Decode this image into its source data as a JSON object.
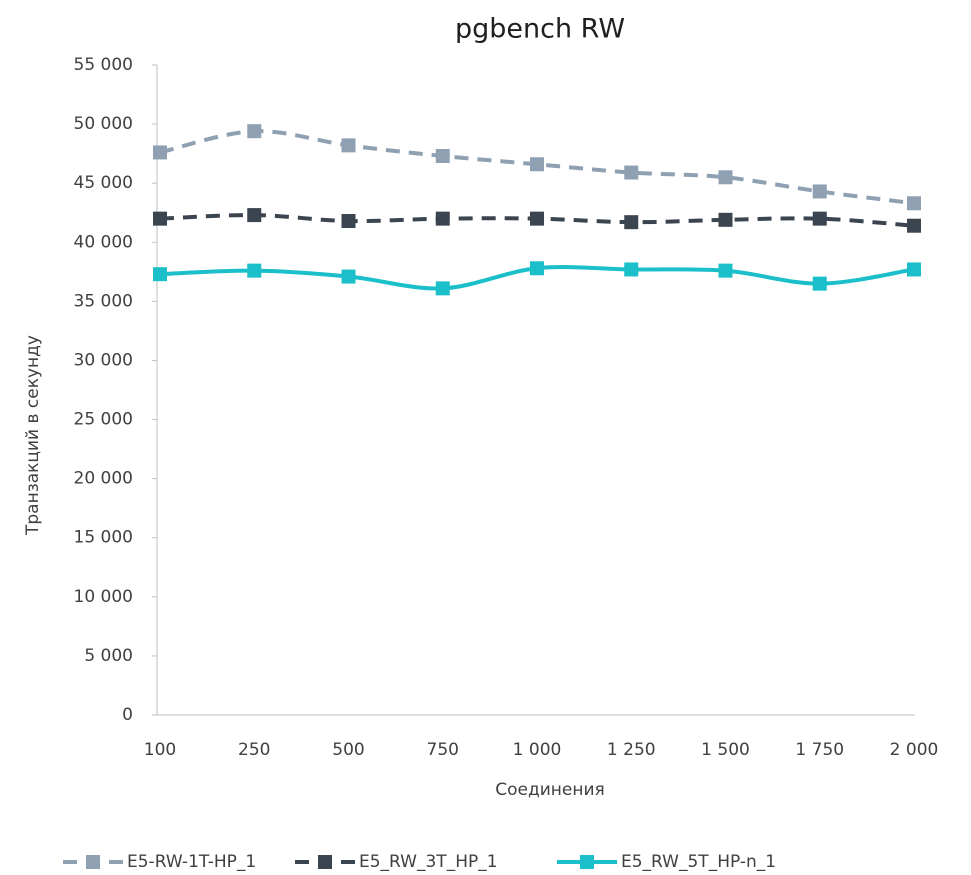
{
  "chart_data": {
    "type": "line",
    "title": "pgbench RW",
    "x_label": "Соединения",
    "y_label": "Транзакций в секунду",
    "categories": [
      "100",
      "250",
      "500",
      "750",
      "1 000",
      "1 250",
      "1 500",
      "1 750",
      "2 000"
    ],
    "ylim": [
      0,
      55000
    ],
    "yticks": [
      {
        "value": 0,
        "label": "0"
      },
      {
        "value": 5000,
        "label": "5 000"
      },
      {
        "value": 10000,
        "label": "10 000"
      },
      {
        "value": 15000,
        "label": "15 000"
      },
      {
        "value": 20000,
        "label": "20 000"
      },
      {
        "value": 25000,
        "label": "25 000"
      },
      {
        "value": 30000,
        "label": "30 000"
      },
      {
        "value": 35000,
        "label": "35 000"
      },
      {
        "value": 40000,
        "label": "40 000"
      },
      {
        "value": 45000,
        "label": "45 000"
      },
      {
        "value": 50000,
        "label": "50 000"
      },
      {
        "value": 55000,
        "label": "55 000"
      }
    ],
    "grid": false,
    "legend": "bottom",
    "series": [
      {
        "name": "E5-RW-1T-HP_1",
        "color": "#8fa0b3",
        "dashed": true,
        "smooth": true,
        "values": [
          47600,
          49400,
          48200,
          47300,
          46600,
          45900,
          45500,
          44300,
          43300
        ]
      },
      {
        "name": "E5_RW_3T_HP_1",
        "color": "#3b4550",
        "dashed": true,
        "smooth": true,
        "values": [
          42000,
          42300,
          41800,
          42000,
          42000,
          41700,
          41900,
          42000,
          41400
        ]
      },
      {
        "name": "E5_RW_5T_HP-n_1",
        "color": "#1bbfc9",
        "dashed": false,
        "smooth": true,
        "values": [
          37300,
          37600,
          37100,
          36100,
          37800,
          37700,
          37600,
          36500,
          37700
        ]
      }
    ]
  }
}
